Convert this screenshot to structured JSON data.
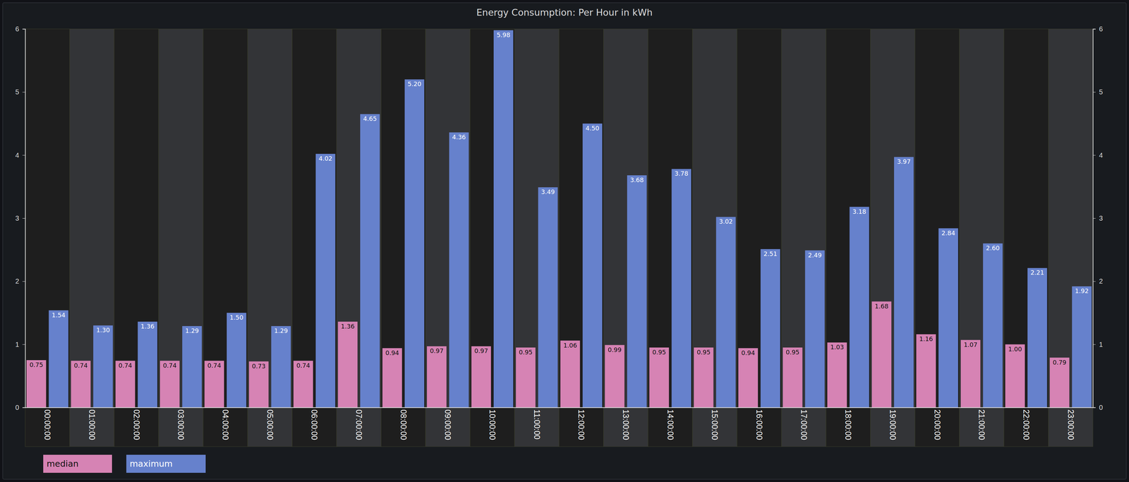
{
  "chart_data": {
    "type": "bar",
    "title": "Energy Consumption: Per Hour in kWh",
    "categories": [
      "00:00:00",
      "01:00:00",
      "02:00:00",
      "03:00:00",
      "04:00:00",
      "05:00:00",
      "06:00:00",
      "07:00:00",
      "08:00:00",
      "09:00:00",
      "10:00:00",
      "11:00:00",
      "12:00:00",
      "13:00:00",
      "14:00:00",
      "15:00:00",
      "16:00:00",
      "17:00:00",
      "18:00:00",
      "19:00:00",
      "20:00:00",
      "21:00:00",
      "22:00:00",
      "23:00:00"
    ],
    "series": [
      {
        "name": "median",
        "color": "#d683b4",
        "values": [
          0.75,
          0.74,
          0.74,
          0.74,
          0.74,
          0.73,
          0.74,
          1.36,
          0.94,
          0.97,
          0.97,
          0.95,
          1.06,
          0.99,
          0.95,
          0.95,
          0.94,
          0.95,
          1.03,
          1.68,
          1.16,
          1.07,
          1.0,
          0.79
        ],
        "value_labels": [
          "0.75",
          "0.74",
          "0.74",
          "0.74",
          "0.74",
          "0.73",
          "0.74",
          "1.36",
          "0.94",
          "0.97",
          "0.97",
          "0.95",
          "1.06",
          "0.99",
          "0.95",
          "0.95",
          "0.94",
          "0.95",
          "1.03",
          "1.68",
          "1.16",
          "1.07",
          "1.00",
          "0.79"
        ]
      },
      {
        "name": "maximum",
        "color": "#6681cc",
        "values": [
          1.54,
          1.3,
          1.36,
          1.29,
          1.5,
          1.29,
          4.02,
          4.65,
          5.2,
          4.36,
          5.98,
          3.49,
          4.5,
          3.68,
          3.78,
          3.02,
          2.51,
          2.49,
          3.18,
          3.97,
          2.84,
          2.6,
          2.21,
          1.92
        ],
        "value_labels": [
          "1.54",
          "1.30",
          "1.36",
          "1.29",
          "1.50",
          "1.29",
          "4.02",
          "4.65",
          "5.20",
          "4.36",
          "5.98",
          "3.49",
          "4.50",
          "3.68",
          "3.78",
          "3.02",
          "2.51",
          "2.49",
          "3.18",
          "3.97",
          "2.84",
          "2.60",
          "2.21",
          "1.92"
        ]
      }
    ],
    "ylim": [
      0,
      6
    ],
    "yticks": [
      0,
      1,
      2,
      3,
      4,
      5,
      6
    ],
    "grid": false,
    "data_labels": true,
    "legend": "bottom-left"
  }
}
